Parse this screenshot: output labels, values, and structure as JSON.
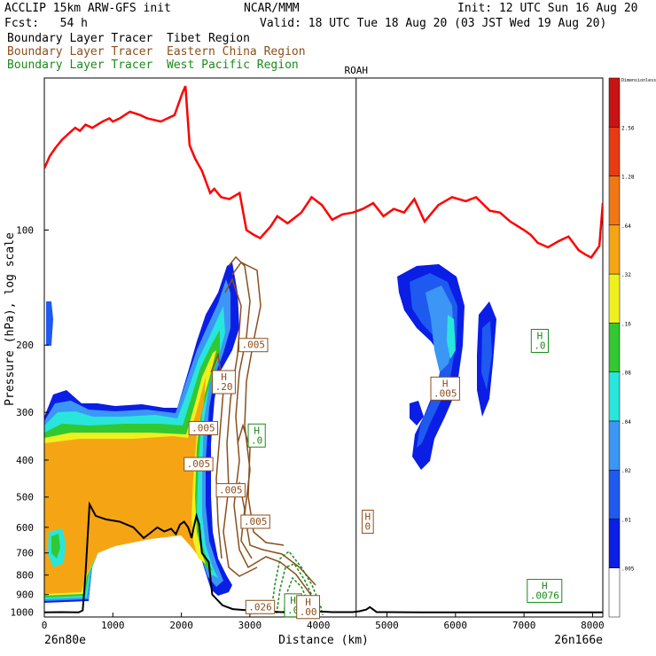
{
  "header": {
    "model": "ACCLIP 15km ARW-GFS init",
    "forecast": "Fcst:   54 h",
    "center": "NCAR/MMM",
    "init": "Init: 12 UTC Sun 16 Aug 20",
    "valid": "Valid: 18 UTC Tue 18 Aug 20 (03 JST Wed 19 Aug 20)"
  },
  "legend": [
    {
      "label": "Boundary Layer Tracer  Tibet Region",
      "color": "#000000"
    },
    {
      "label": "Boundary Layer Tracer  Eastern China Region",
      "color": "#8b4f1c"
    },
    {
      "label": "Boundary Layer Tracer  West Pacific Region",
      "color": "#1c8a1c"
    }
  ],
  "chart_data": {
    "type": "line",
    "title": "",
    "xlabel": "Distance (km)",
    "ylabel": "Pressure (hPa), log scale",
    "xlim": [
      0,
      8150
    ],
    "ylim": [
      1030,
      40
    ],
    "y_scale": "log",
    "x_ticks": [
      0,
      1000,
      2000,
      3000,
      4000,
      5000,
      6000,
      7000,
      8000
    ],
    "y_ticks": [
      100,
      200,
      300,
      400,
      500,
      600,
      700,
      800,
      900,
      1000
    ],
    "x_tick_labels": [
      "0",
      "1000",
      "2000",
      "3000",
      "4000",
      "5000",
      "6000",
      "7000",
      "8000"
    ],
    "y_tick_labels": [
      "100",
      "200",
      "300",
      "400",
      "500",
      "600",
      "700",
      "800",
      "900",
      "1000"
    ],
    "left_endpoint": "26n80e",
    "right_endpoint": "26n166e",
    "marker": {
      "label": "ROAH",
      "x": 4550
    },
    "series": [
      {
        "color": "#ff0000",
        "x": [
          0,
          80,
          160,
          260,
          350,
          450,
          520,
          600,
          700,
          850,
          950,
          1000,
          1100,
          1250,
          1400,
          1500,
          1700,
          1900,
          2010,
          2060,
          2120,
          2200,
          2300,
          2420,
          2480,
          2580,
          2700,
          2850,
          2950,
          3060,
          3150,
          3300,
          3400,
          3550,
          3750,
          3900,
          4050,
          4200,
          4350,
          4500,
          4650,
          4800,
          4950,
          5100,
          5250,
          5400,
          5550,
          5750,
          5950,
          6150,
          6300,
          6500,
          6650,
          6800,
          7000,
          7100,
          7200,
          7350,
          7500,
          7650,
          7800,
          7900,
          7980,
          8040,
          8100,
          8150
        ],
        "y": [
          69,
          64,
          61,
          58,
          56,
          54,
          55,
          53,
          54,
          52,
          51,
          52,
          51,
          49,
          50,
          51,
          52,
          50,
          44,
          42,
          60,
          65,
          70,
          80,
          78,
          82,
          83,
          80,
          100,
          103,
          105,
          98,
          92,
          96,
          90,
          82,
          86,
          94,
          91,
          90,
          88,
          85,
          92,
          88,
          90,
          83,
          95,
          86,
          82,
          84,
          82,
          89,
          90,
          95,
          100,
          103,
          108,
          111,
          107,
          104,
          113,
          116,
          118,
          114,
          110,
          85
        ]
      },
      {
        "color": "#000000",
        "x": [
          0,
          250,
          500,
          560,
          600,
          660,
          750,
          900,
          1100,
          1300,
          1450,
          1550,
          1650,
          1750,
          1850,
          1920,
          1980,
          2040,
          2100,
          2150,
          2180,
          2220,
          2260,
          2300,
          2400,
          2450,
          2600,
          2750,
          3000,
          3200,
          3450,
          3700,
          3950,
          4200,
          4400,
          4500,
          4600,
          4700,
          4750,
          4800,
          4850,
          5000,
          5500,
          6500,
          7500,
          8150
        ],
        "y": [
          1002,
          1000,
          1002,
          990,
          800,
          522,
          560,
          572,
          580,
          600,
          640,
          620,
          600,
          615,
          605,
          625,
          590,
          580,
          600,
          640,
          600,
          560,
          590,
          700,
          740,
          900,
          960,
          982,
          990,
          995,
          1000,
          998,
          995,
          1000,
          1000,
          1000,
          995,
          985,
          970,
          985,
          1000,
          1000,
          1002,
          1002,
          1002,
          1002
        ]
      }
    ],
    "colorbar": {
      "label": "Dimensionless",
      "ticks": [
        ".005",
        ".01",
        ".02",
        ".04",
        ".08",
        ".16",
        ".32",
        ".64",
        "1.28",
        "2.56"
      ],
      "colors": [
        "#ffffff",
        "#0a1ee6",
        "#1e5af0",
        "#3c96f5",
        "#28e6dc",
        "#32c832",
        "#f0f01e",
        "#f5a514",
        "#f07814",
        "#e63c14",
        "#c81414"
      ]
    },
    "annotations": [
      {
        "text": ".005",
        "x": 3050,
        "y": 200,
        "color": "#8b4f1c"
      },
      {
        "text": "H\n.20",
        "x": 2620,
        "y": 250,
        "color": "#8b4f1c"
      },
      {
        "text": ".005",
        "x": 2320,
        "y": 330,
        "color": "#8b4f1c"
      },
      {
        "text": "H\n.0",
        "x": 3100,
        "y": 345,
        "color": "#1c8a1c"
      },
      {
        "text": ".005",
        "x": 2250,
        "y": 410,
        "color": "#8b4f1c"
      },
      {
        "text": ".005",
        "x": 2720,
        "y": 480,
        "color": "#8b4f1c"
      },
      {
        "text": ".005",
        "x": 3080,
        "y": 580,
        "color": "#8b4f1c"
      },
      {
        "text": "H\n.005",
        "x": 5850,
        "y": 260,
        "color": "#8b4f1c"
      },
      {
        "text": "H\n.0",
        "x": 7230,
        "y": 195,
        "color": "#1c8a1c"
      },
      {
        "text": "H\n0",
        "x": 4720,
        "y": 580,
        "color": "#8b4f1c"
      },
      {
        "text": "H\n.0076",
        "x": 7300,
        "y": 880,
        "color": "#1c8a1c"
      },
      {
        "text": ".026",
        "x": 3150,
        "y": 970,
        "color": "#8b4f1c"
      },
      {
        "text": "H\n.0",
        "x": 3630,
        "y": 960,
        "color": "#1c8a1c"
      },
      {
        "text": "H\n.00",
        "x": 3850,
        "y": 970,
        "color": "#8b4f1c"
      }
    ]
  }
}
